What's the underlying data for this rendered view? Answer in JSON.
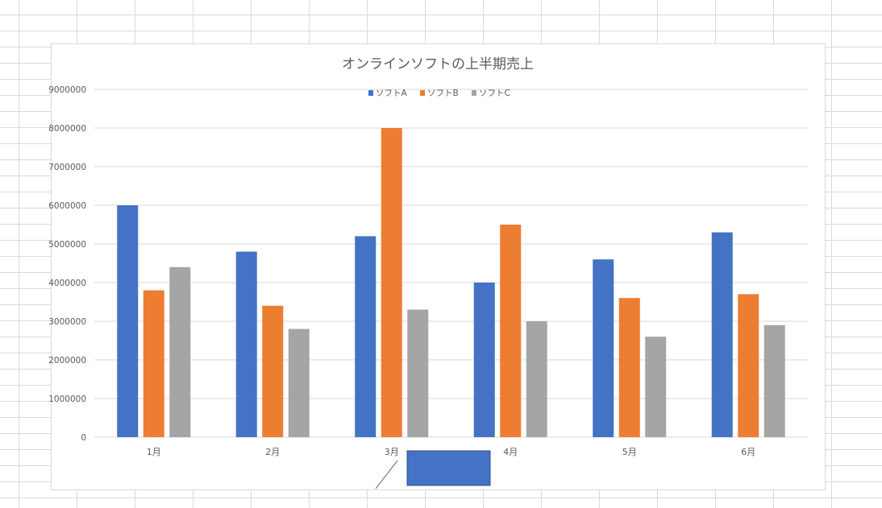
{
  "chart_data": {
    "type": "bar",
    "title": "オンラインソフトの上半期売上",
    "xlabel": "",
    "ylabel": "",
    "categories": [
      "1月",
      "2月",
      "3月",
      "4月",
      "5月",
      "6月"
    ],
    "series": [
      {
        "name": "ソフトA",
        "color": "#4472c4",
        "values": [
          6000000,
          4800000,
          5200000,
          4000000,
          4600000,
          5300000
        ]
      },
      {
        "name": "ソフトB",
        "color": "#ed7d31",
        "values": [
          3800000,
          3400000,
          8000000,
          5500000,
          3600000,
          3700000
        ]
      },
      {
        "name": "ソフトC",
        "color": "#a5a5a5",
        "values": [
          4400000,
          2800000,
          3300000,
          3000000,
          2600000,
          2900000
        ]
      }
    ],
    "ylim": [
      0,
      9000000
    ],
    "yticks": [
      "0",
      "1000000",
      "2000000",
      "3000000",
      "4000000",
      "5000000",
      "6000000",
      "7000000",
      "8000000",
      "9000000"
    ],
    "grid": true,
    "legend_position": "top"
  },
  "overlay": {
    "shape_color": "#4472c4"
  },
  "colors": {
    "gridline": "#d9d9d9",
    "axis_text": "#595959",
    "title_text": "#595959"
  }
}
